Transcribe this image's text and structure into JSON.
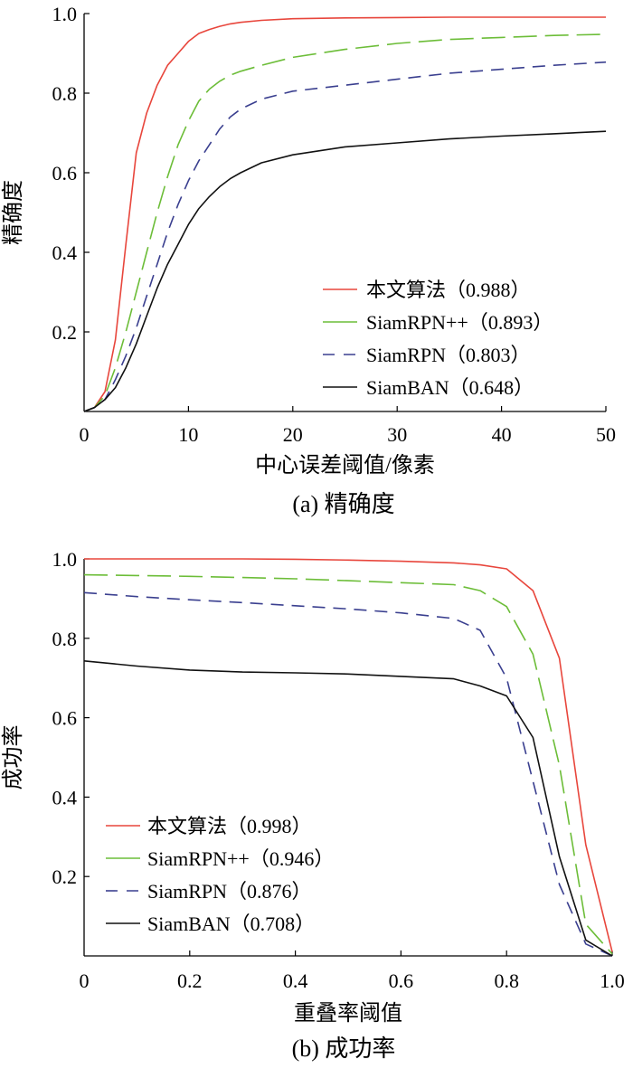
{
  "chart_data": [
    {
      "type": "line",
      "caption": "(a)  精确度",
      "xlabel": "中心误差阈值/像素",
      "ylabel": "精确度",
      "xlim": [
        0,
        50
      ],
      "ylim": [
        0,
        1.0
      ],
      "x_ticks": [
        0,
        10,
        20,
        30,
        40,
        50
      ],
      "x_tick_labels": [
        "0",
        "10",
        "20",
        "30",
        "40",
        "50"
      ],
      "y_ticks": [
        0.2,
        0.4,
        0.6,
        0.8,
        1.0
      ],
      "y_tick_labels": [
        "0.2",
        "0.4",
        "0.6",
        "0.8",
        "1.0"
      ],
      "grid": false,
      "legend_position": "bottom-right",
      "series": [
        {
          "name": "本文算法（0.988）",
          "color": "#e8463c",
          "dash": "solid",
          "x": [
            0,
            1,
            2,
            3,
            4,
            5,
            6,
            7,
            8,
            9,
            10,
            11,
            12,
            13,
            14,
            15,
            17,
            20,
            25,
            30,
            35,
            40,
            45,
            50
          ],
          "y": [
            0.0,
            0.01,
            0.05,
            0.18,
            0.42,
            0.65,
            0.75,
            0.82,
            0.87,
            0.9,
            0.93,
            0.95,
            0.96,
            0.968,
            0.974,
            0.978,
            0.983,
            0.987,
            0.989,
            0.99,
            0.991,
            0.991,
            0.991,
            0.991
          ]
        },
        {
          "name": "SiamRPN++（0.893）",
          "color": "#6cbd38",
          "dash": "long",
          "x": [
            0,
            1,
            2,
            3,
            4,
            5,
            6,
            7,
            8,
            9,
            10,
            11,
            12,
            13,
            14,
            15,
            17,
            20,
            25,
            30,
            35,
            40,
            45,
            50
          ],
          "y": [
            0.0,
            0.01,
            0.04,
            0.11,
            0.2,
            0.3,
            0.4,
            0.5,
            0.59,
            0.67,
            0.73,
            0.78,
            0.81,
            0.83,
            0.845,
            0.855,
            0.87,
            0.89,
            0.91,
            0.925,
            0.935,
            0.94,
            0.945,
            0.948
          ]
        },
        {
          "name": "SiamRPN（0.803）",
          "color": "#3a3f8f",
          "dash": "medium",
          "x": [
            0,
            1,
            2,
            3,
            4,
            5,
            6,
            7,
            8,
            9,
            10,
            11,
            12,
            13,
            14,
            15,
            17,
            20,
            25,
            30,
            35,
            40,
            45,
            50
          ],
          "y": [
            0.0,
            0.01,
            0.03,
            0.08,
            0.14,
            0.21,
            0.29,
            0.37,
            0.45,
            0.52,
            0.58,
            0.63,
            0.67,
            0.71,
            0.74,
            0.76,
            0.785,
            0.805,
            0.82,
            0.835,
            0.85,
            0.86,
            0.87,
            0.878
          ]
        },
        {
          "name": "SiamBAN（0.648）",
          "color": "#111111",
          "dash": "solid",
          "x": [
            0,
            1,
            2,
            3,
            4,
            5,
            6,
            7,
            8,
            9,
            10,
            11,
            12,
            13,
            14,
            15,
            17,
            20,
            25,
            30,
            35,
            40,
            45,
            50
          ],
          "y": [
            0.0,
            0.01,
            0.03,
            0.06,
            0.11,
            0.17,
            0.24,
            0.31,
            0.37,
            0.42,
            0.47,
            0.51,
            0.54,
            0.565,
            0.585,
            0.6,
            0.625,
            0.645,
            0.665,
            0.675,
            0.685,
            0.692,
            0.698,
            0.704
          ]
        }
      ]
    },
    {
      "type": "line",
      "caption": "(b)  成功率",
      "xlabel": "重叠率阈值",
      "ylabel": "成功率",
      "xlim": [
        0,
        1.0
      ],
      "ylim": [
        0,
        1.0
      ],
      "x_ticks": [
        0,
        0.2,
        0.4,
        0.6,
        0.8,
        1.0
      ],
      "x_tick_labels": [
        "0",
        "0.2",
        "0.4",
        "0.6",
        "0.8",
        "1.0"
      ],
      "y_ticks": [
        0.2,
        0.4,
        0.6,
        0.8,
        1.0
      ],
      "y_tick_labels": [
        "0.2",
        "0.4",
        "0.6",
        "0.8",
        "1.0"
      ],
      "grid": false,
      "legend_position": "bottom-left",
      "series": [
        {
          "name": "本文算法（0.998）",
          "color": "#e8463c",
          "dash": "solid",
          "x": [
            0,
            0.1,
            0.2,
            0.3,
            0.4,
            0.5,
            0.6,
            0.7,
            0.75,
            0.8,
            0.85,
            0.9,
            0.95,
            1.0
          ],
          "y": [
            1.0,
            1.0,
            1.0,
            1.0,
            0.999,
            0.997,
            0.994,
            0.99,
            0.985,
            0.975,
            0.92,
            0.75,
            0.28,
            0.01
          ]
        },
        {
          "name": "SiamRPN++（0.946）",
          "color": "#6cbd38",
          "dash": "long",
          "x": [
            0,
            0.1,
            0.2,
            0.3,
            0.4,
            0.5,
            0.6,
            0.7,
            0.75,
            0.8,
            0.85,
            0.9,
            0.95,
            1.0
          ],
          "y": [
            0.96,
            0.958,
            0.956,
            0.953,
            0.95,
            0.945,
            0.94,
            0.935,
            0.92,
            0.88,
            0.76,
            0.48,
            0.08,
            0.005
          ]
        },
        {
          "name": "SiamRPN（0.876）",
          "color": "#3a3f8f",
          "dash": "medium",
          "x": [
            0,
            0.1,
            0.2,
            0.3,
            0.4,
            0.5,
            0.6,
            0.7,
            0.75,
            0.8,
            0.85,
            0.9,
            0.95,
            1.0
          ],
          "y": [
            0.915,
            0.905,
            0.897,
            0.89,
            0.882,
            0.874,
            0.864,
            0.85,
            0.82,
            0.7,
            0.44,
            0.18,
            0.03,
            0.0
          ]
        },
        {
          "name": "SiamBAN（0.708）",
          "color": "#111111",
          "dash": "solid",
          "x": [
            0,
            0.1,
            0.2,
            0.3,
            0.4,
            0.5,
            0.6,
            0.7,
            0.75,
            0.8,
            0.85,
            0.9,
            0.95,
            1.0
          ],
          "y": [
            0.743,
            0.73,
            0.72,
            0.715,
            0.713,
            0.71,
            0.704,
            0.698,
            0.68,
            0.655,
            0.55,
            0.25,
            0.04,
            0.0
          ]
        }
      ]
    }
  ]
}
